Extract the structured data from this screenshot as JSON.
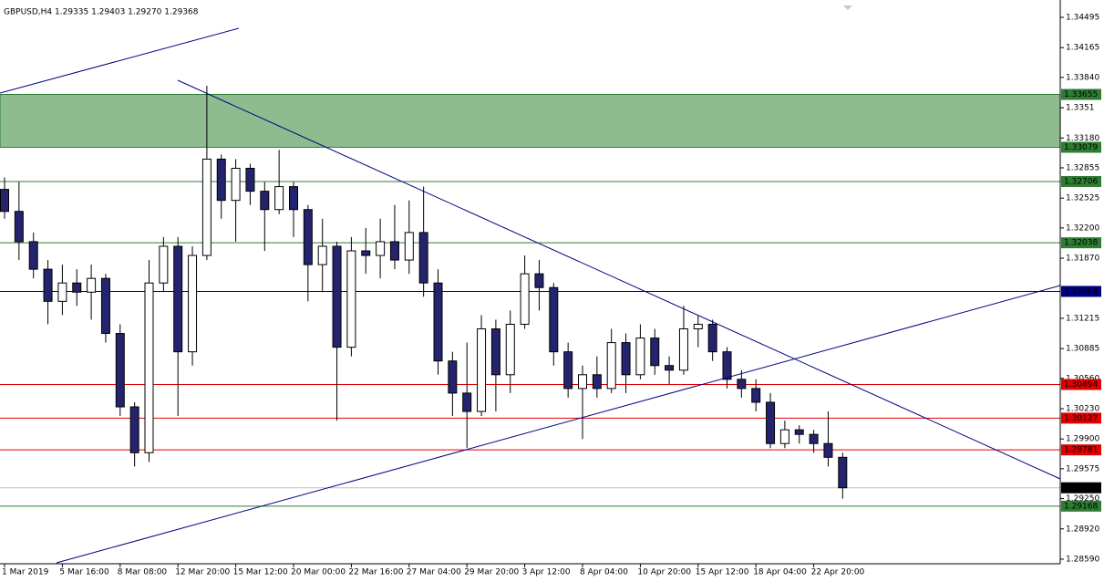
{
  "chart_data": {
    "type": "candlestick",
    "title": "GBPUSD,H4  1.29335 1.29403 1.29270 1.29368",
    "categories": [
      "1 Mar 2019",
      null,
      null,
      null,
      "5 Mar 16:00",
      null,
      null,
      null,
      "8 Mar 08:00",
      null,
      null,
      null,
      "12 Mar 20:00",
      null,
      null,
      null,
      "15 Mar 12:00",
      null,
      null,
      null,
      "20 Mar 00:00",
      null,
      null,
      null,
      "22 Mar 16:00",
      null,
      null,
      null,
      "27 Mar 04:00",
      null,
      null,
      null,
      "29 Mar 20:00",
      null,
      null,
      null,
      "3 Apr 12:00",
      null,
      null,
      null,
      "8 Apr 04:00",
      null,
      null,
      null,
      "10 Apr 20:00",
      null,
      null,
      null,
      "15 Apr 12:00",
      null,
      null,
      null,
      "18 Apr 04:00",
      null,
      null,
      null,
      "22 Apr 20:00",
      null,
      null
    ],
    "open": [
      1.3262,
      1.3238,
      1.3205,
      1.3175,
      1.314,
      1.316,
      1.315,
      1.3165,
      1.3105,
      1.3025,
      1.2975,
      1.316,
      1.32,
      1.3085,
      1.319,
      1.3295,
      1.325,
      1.3285,
      1.326,
      1.324,
      1.3265,
      1.324,
      1.318,
      1.32,
      1.309,
      1.3195,
      1.319,
      1.3205,
      1.3185,
      1.3215,
      1.316,
      1.3075,
      1.304,
      1.302,
      1.311,
      1.306,
      1.3115,
      1.317,
      1.3155,
      1.3085,
      1.3045,
      1.306,
      1.3045,
      1.3095,
      1.306,
      1.31,
      1.307,
      1.3065,
      1.311,
      1.3115,
      1.3085,
      1.3055,
      1.3045,
      1.303,
      1.2985,
      1.3,
      1.2995,
      1.2985,
      1.297
    ],
    "high": [
      1.3275,
      1.327,
      1.3215,
      1.3185,
      1.318,
      1.3175,
      1.318,
      1.317,
      1.3115,
      1.303,
      1.3185,
      1.321,
      1.321,
      1.32,
      1.3375,
      1.33,
      1.3295,
      1.329,
      1.327,
      1.3305,
      1.327,
      1.3245,
      1.323,
      1.3205,
      1.321,
      1.322,
      1.323,
      1.3245,
      1.325,
      1.3265,
      1.3175,
      1.3085,
      1.3095,
      1.3125,
      1.312,
      1.313,
      1.319,
      1.3185,
      1.316,
      1.3095,
      1.307,
      1.308,
      1.311,
      1.3105,
      1.3115,
      1.311,
      1.308,
      1.3135,
      1.3125,
      1.312,
      1.309,
      1.3065,
      1.3055,
      1.304,
      1.301,
      1.3005,
      1.3,
      1.302,
      1.2975
    ],
    "low": [
      1.323,
      1.3185,
      1.3165,
      1.3115,
      1.3125,
      1.3135,
      1.312,
      1.3095,
      1.3015,
      1.296,
      1.2965,
      1.315,
      1.3015,
      1.307,
      1.3185,
      1.323,
      1.3205,
      1.3245,
      1.3195,
      1.3235,
      1.321,
      1.314,
      1.315,
      1.301,
      1.308,
      1.317,
      1.3165,
      1.3175,
      1.317,
      1.3145,
      1.306,
      1.3015,
      1.298,
      1.3015,
      1.302,
      1.304,
      1.311,
      1.313,
      1.307,
      1.3035,
      1.299,
      1.3035,
      1.304,
      1.304,
      1.3055,
      1.306,
      1.305,
      1.306,
      1.309,
      1.3075,
      1.3045,
      1.3035,
      1.302,
      1.298,
      1.298,
      1.2985,
      1.2975,
      1.296,
      1.2925
    ],
    "close": [
      1.3238,
      1.3205,
      1.3175,
      1.314,
      1.316,
      1.315,
      1.3165,
      1.3105,
      1.3025,
      1.2975,
      1.316,
      1.32,
      1.3085,
      1.319,
      1.3295,
      1.325,
      1.3285,
      1.326,
      1.324,
      1.3265,
      1.324,
      1.318,
      1.32,
      1.309,
      1.3195,
      1.319,
      1.3205,
      1.3185,
      1.3215,
      1.316,
      1.3075,
      1.304,
      1.302,
      1.311,
      1.306,
      1.3115,
      1.317,
      1.3155,
      1.3085,
      1.3045,
      1.306,
      1.3045,
      1.3095,
      1.306,
      1.31,
      1.307,
      1.3065,
      1.311,
      1.3115,
      1.3085,
      1.3055,
      1.3045,
      1.303,
      1.2985,
      1.3,
      1.2995,
      1.2985,
      1.297,
      1.29368
    ],
    "up_color": "#ffffff",
    "down_color": "#24246e",
    "wick_color": "#000000",
    "ylim": [
      1.2854,
      1.34684
    ],
    "yticks": [
      1.34495,
      1.34165,
      {
        "value": 1.3384,
        "label": "1.33840"
      },
      1.3351,
      {
        "value": 1.3318,
        "label": "1.33180"
      },
      1.32855,
      1.32525,
      {
        "value": 1.322,
        "label": "1.32200"
      },
      {
        "value": 1.3187,
        "label": "1.31870"
      },
      1.31215,
      1.30885,
      {
        "value": 1.3056,
        "label": "1.30560"
      },
      {
        "value": 1.3023,
        "label": "1.30230"
      },
      {
        "value": 1.299,
        "label": "1.29900"
      },
      1.29575,
      {
        "value": 1.2925,
        "label": "1.29250"
      },
      {
        "value": 1.2892,
        "label": "1.28920"
      },
      {
        "value": 1.2859,
        "label": "1.28590"
      }
    ],
    "zone": {
      "from": 1.33079,
      "to": 1.33655,
      "color": "#8fbc8f",
      "label_color": "#2e7d32"
    },
    "levels": [
      {
        "value": 1.32706,
        "color": "#2e7d32"
      },
      {
        "value": 1.32038,
        "color": "#2e7d32"
      },
      {
        "value": 1.31508,
        "color": "#000080"
      },
      {
        "value": 1.30494,
        "color": "#e00000"
      },
      {
        "value": 1.30127,
        "color": "#e00000"
      },
      {
        "value": 1.29781,
        "color": "#e00000"
      },
      {
        "value": 1.29368,
        "color": "#000000",
        "line_color": "#c0c0c0"
      },
      {
        "value": 1.29168,
        "color": "#2e7d32"
      }
    ]
  }
}
